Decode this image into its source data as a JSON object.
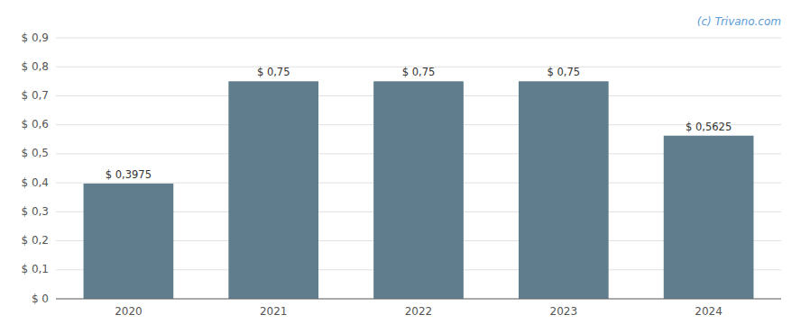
{
  "chart_data": {
    "type": "bar",
    "categories": [
      "2020",
      "2021",
      "2022",
      "2023",
      "2024"
    ],
    "values": [
      0.3975,
      0.75,
      0.75,
      0.75,
      0.5625
    ],
    "value_labels": [
      "$ 0,3975",
      "$ 0,75",
      "$ 0,75",
      "$ 0,75",
      "$ 0,5625"
    ],
    "data_labels": true,
    "color": "#5f7d8c",
    "ylim": [
      0,
      0.9
    ],
    "yticks": [
      {
        "value": 0,
        "label": "$ 0"
      },
      {
        "value": 0.1,
        "label": "$ 0,1"
      },
      {
        "value": 0.2,
        "label": "$ 0,2"
      },
      {
        "value": 0.3,
        "label": "$ 0,3"
      },
      {
        "value": 0.4,
        "label": "$ 0,4"
      },
      {
        "value": 0.5,
        "label": "$ 0,5"
      },
      {
        "value": 0.6,
        "label": "$ 0,6"
      },
      {
        "value": 0.7,
        "label": "$ 0,7"
      },
      {
        "value": 0.8,
        "label": "$ 0,8"
      },
      {
        "value": 0.9,
        "label": "$ 0,9"
      }
    ],
    "grid": true,
    "annotations": [
      "(c) Trivano.com"
    ]
  }
}
